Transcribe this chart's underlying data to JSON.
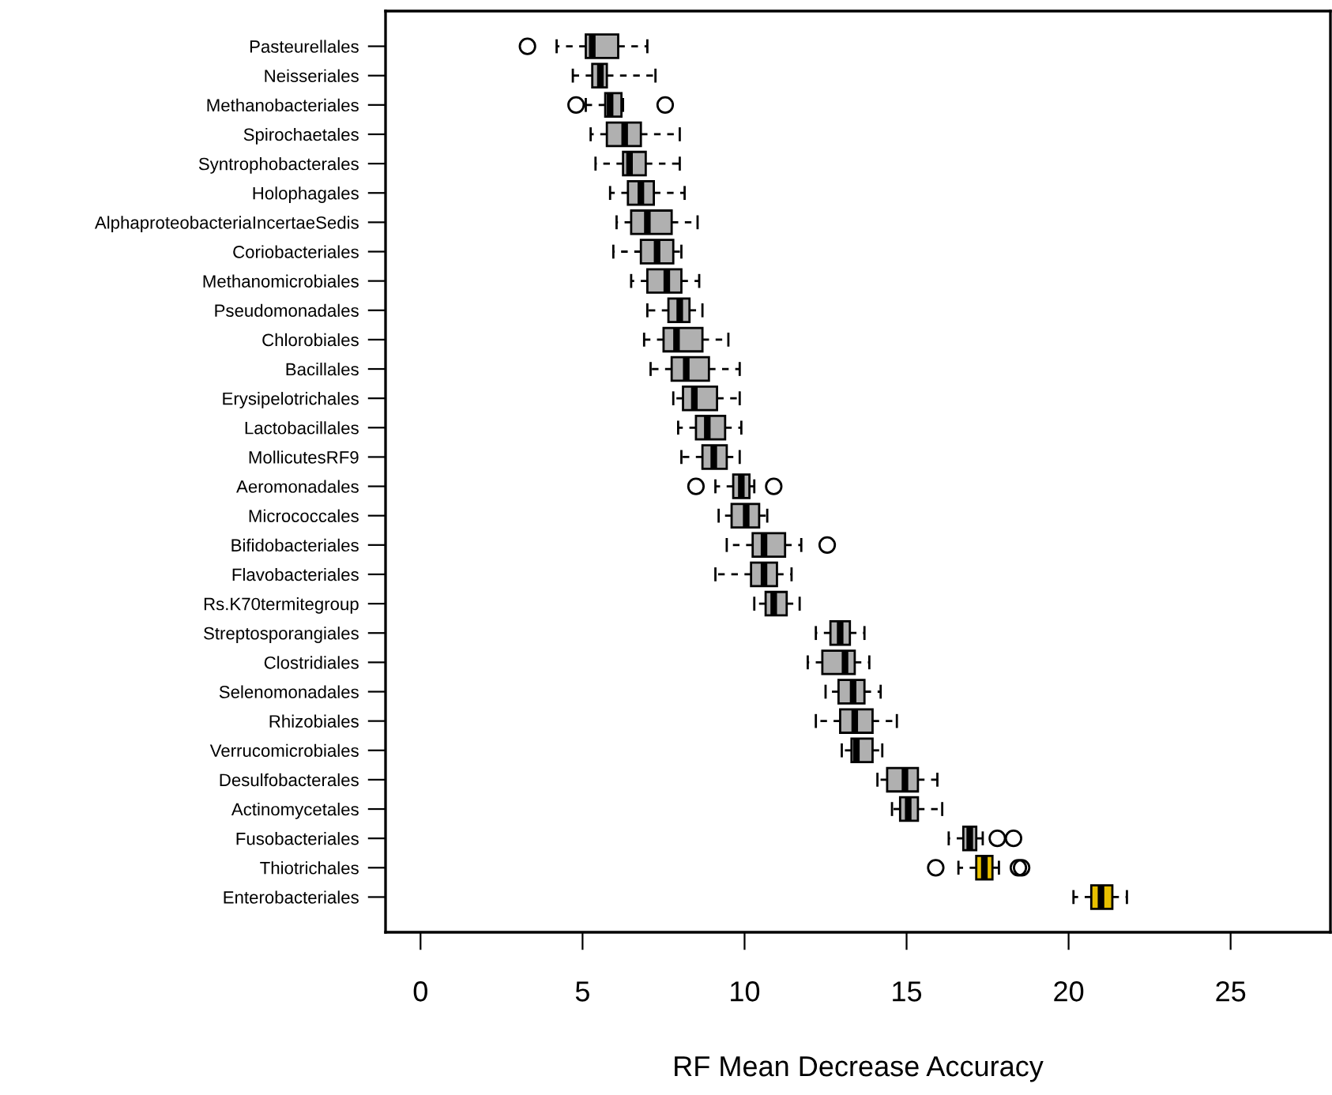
{
  "chart_data": {
    "type": "box",
    "orientation": "horizontal",
    "xlabel": "RF Mean Decrease Accuracy",
    "categories": [
      "Pasteurellales",
      "Neisseriales",
      "Methanobacteriales",
      "Spirochaetales",
      "Syntrophobacterales",
      "Holophagales",
      "AlphaproteobacteriaIncertaeSedis",
      "Coriobacteriales",
      "Methanomicrobiales",
      "Pseudomonadales",
      "Chlorobiales",
      "Bacillales",
      "Erysipelotrichales",
      "Lactobacillales",
      "MollicutesRF9",
      "Aeromonadales",
      "Micrococcales",
      "Bifidobacteriales",
      "Flavobacteriales",
      "Rs.K70termitegroup",
      "Streptosporangiales",
      "Clostridiales",
      "Selenomonadales",
      "Rhizobiales",
      "Verrucomicrobiales",
      "Desulfobacterales",
      "Actinomycetales",
      "Fusobacteriales",
      "Thiotrichales",
      "Enterobacteriales"
    ],
    "boxes": [
      {
        "low": 4.2,
        "q1": 5.1,
        "median": 5.3,
        "q3": 6.1,
        "high": 7.0,
        "outliers": [
          3.3
        ]
      },
      {
        "low": 4.7,
        "q1": 5.3,
        "median": 5.55,
        "q3": 5.75,
        "high": 7.25
      },
      {
        "low": 5.1,
        "q1": 5.7,
        "median": 5.85,
        "q3": 6.2,
        "high": 6.25,
        "outliers": [
          4.8,
          7.55
        ]
      },
      {
        "low": 5.25,
        "q1": 5.75,
        "median": 6.3,
        "q3": 6.8,
        "high": 8.0
      },
      {
        "low": 5.4,
        "q1": 6.25,
        "median": 6.45,
        "q3": 6.95,
        "high": 8.0
      },
      {
        "low": 5.85,
        "q1": 6.4,
        "median": 6.8,
        "q3": 7.2,
        "high": 8.15
      },
      {
        "low": 6.05,
        "q1": 6.5,
        "median": 7.0,
        "q3": 7.75,
        "high": 8.55
      },
      {
        "low": 5.95,
        "q1": 6.8,
        "median": 7.3,
        "q3": 7.8,
        "high": 8.05
      },
      {
        "low": 6.5,
        "q1": 7.0,
        "median": 7.6,
        "q3": 8.05,
        "high": 8.6
      },
      {
        "low": 7.0,
        "q1": 7.65,
        "median": 8.0,
        "q3": 8.3,
        "high": 8.7
      },
      {
        "low": 6.9,
        "q1": 7.5,
        "median": 7.9,
        "q3": 8.7,
        "high": 9.5
      },
      {
        "low": 7.1,
        "q1": 7.75,
        "median": 8.2,
        "q3": 8.9,
        "high": 9.85
      },
      {
        "low": 7.8,
        "q1": 8.1,
        "median": 8.45,
        "q3": 9.15,
        "high": 9.85
      },
      {
        "low": 7.95,
        "q1": 8.5,
        "median": 8.85,
        "q3": 9.4,
        "high": 9.9
      },
      {
        "low": 8.05,
        "q1": 8.7,
        "median": 9.05,
        "q3": 9.45,
        "high": 9.85
      },
      {
        "low": 9.1,
        "q1": 9.65,
        "median": 9.9,
        "q3": 10.15,
        "high": 10.3,
        "outliers": [
          8.5,
          10.9
        ]
      },
      {
        "low": 9.2,
        "q1": 9.6,
        "median": 10.05,
        "q3": 10.45,
        "high": 10.7
      },
      {
        "low": 9.45,
        "q1": 10.25,
        "median": 10.6,
        "q3": 11.25,
        "high": 11.75,
        "outliers": [
          12.55
        ]
      },
      {
        "low": 9.1,
        "q1": 10.2,
        "median": 10.6,
        "q3": 11.0,
        "high": 11.45
      },
      {
        "low": 10.3,
        "q1": 10.65,
        "median": 10.9,
        "q3": 11.3,
        "high": 11.7
      },
      {
        "low": 12.2,
        "q1": 12.65,
        "median": 12.95,
        "q3": 13.25,
        "high": 13.7
      },
      {
        "low": 11.95,
        "q1": 12.4,
        "median": 13.1,
        "q3": 13.4,
        "high": 13.85
      },
      {
        "low": 12.5,
        "q1": 12.9,
        "median": 13.35,
        "q3": 13.7,
        "high": 14.2
      },
      {
        "low": 12.2,
        "q1": 12.95,
        "median": 13.4,
        "q3": 13.95,
        "high": 14.7
      },
      {
        "low": 13.0,
        "q1": 13.3,
        "median": 13.45,
        "q3": 13.95,
        "high": 14.25
      },
      {
        "low": 14.1,
        "q1": 14.4,
        "median": 14.95,
        "q3": 15.35,
        "high": 15.95
      },
      {
        "low": 14.55,
        "q1": 14.8,
        "median": 15.05,
        "q3": 15.35,
        "high": 16.1
      },
      {
        "low": 16.3,
        "q1": 16.75,
        "median": 16.95,
        "q3": 17.15,
        "high": 17.35,
        "outliers": [
          17.8,
          18.3
        ]
      },
      {
        "low": 16.6,
        "q1": 17.15,
        "median": 17.4,
        "q3": 17.65,
        "high": 17.85,
        "outliers": [
          15.9,
          18.45,
          18.55
        ]
      },
      {
        "low": 20.15,
        "q1": 20.7,
        "median": 21.0,
        "q3": 21.35,
        "high": 21.8
      }
    ],
    "colors": [
      "#b0b0b0",
      "#b0b0b0",
      "#b0b0b0",
      "#b0b0b0",
      "#b0b0b0",
      "#b0b0b0",
      "#b0b0b0",
      "#b0b0b0",
      "#b0b0b0",
      "#b0b0b0",
      "#b0b0b0",
      "#b0b0b0",
      "#b0b0b0",
      "#b0b0b0",
      "#b0b0b0",
      "#b0b0b0",
      "#b0b0b0",
      "#b0b0b0",
      "#b0b0b0",
      "#b0b0b0",
      "#b0b0b0",
      "#b0b0b0",
      "#b0b0b0",
      "#b0b0b0",
      "#b0b0b0",
      "#b0b0b0",
      "#b0b0b0",
      "#b0b0b0",
      "#e8c000",
      "#e8c000"
    ],
    "xlim": [
      -1.08,
      28.08
    ],
    "xticks": [
      0,
      5,
      10,
      15,
      20,
      25
    ]
  }
}
